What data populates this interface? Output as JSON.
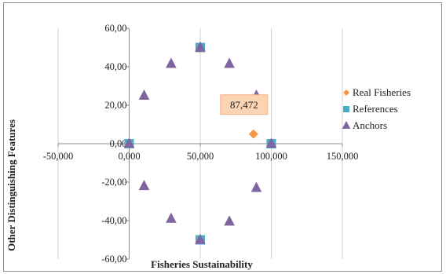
{
  "chart_data": {
    "type": "scatter",
    "xlabel": "Fisheries Sustainability",
    "ylabel": "Other Distinguishing Features",
    "xlim": [
      -50,
      150
    ],
    "ylim": [
      -60,
      60
    ],
    "x_ticks": [
      -50,
      0,
      50,
      100,
      150
    ],
    "y_ticks": [
      -60,
      -40,
      -20,
      0,
      20,
      40,
      60
    ],
    "x_tick_labels": [
      "-50,000",
      "0,000",
      "50,000",
      "100,000",
      "150,000"
    ],
    "y_tick_labels": [
      "-60,00",
      "-40,00",
      "-20,00",
      "0,00",
      "20,00",
      "40,00",
      "60,00"
    ],
    "grid": "vertical gridlines",
    "legend_position": "right",
    "series": [
      {
        "name": "Real Fisheries",
        "marker": "diamond",
        "color": "#F79646",
        "points": [
          {
            "x": 87.472,
            "y": 5
          }
        ]
      },
      {
        "name": "References",
        "marker": "square",
        "color": "#4BACC6",
        "points": [
          {
            "x": 0,
            "y": 0
          },
          {
            "x": 50,
            "y": 50
          },
          {
            "x": 100,
            "y": 0
          },
          {
            "x": 50,
            "y": -50
          }
        ]
      },
      {
        "name": "Anchors",
        "marker": "triangle",
        "color": "#8064A2",
        "points": [
          {
            "x": 0,
            "y": 0
          },
          {
            "x": 50,
            "y": 50
          },
          {
            "x": 100,
            "y": 0
          },
          {
            "x": 50,
            "y": -50
          },
          {
            "x": 29.5,
            "y": 41.5
          },
          {
            "x": 70.5,
            "y": 41.5
          },
          {
            "x": 10.5,
            "y": 25
          },
          {
            "x": 89.5,
            "y": 25
          },
          {
            "x": 10.5,
            "y": -22
          },
          {
            "x": 89.5,
            "y": -23
          },
          {
            "x": 29.5,
            "y": -39
          },
          {
            "x": 70.5,
            "y": -40.5
          }
        ]
      }
    ],
    "annotations": [
      {
        "text": "87,472",
        "x": 87.472,
        "y": 5
      }
    ]
  }
}
